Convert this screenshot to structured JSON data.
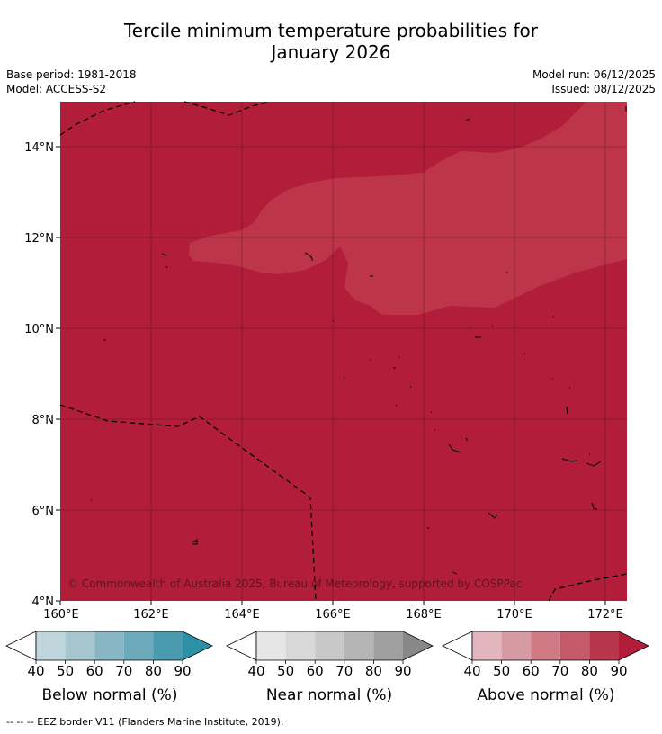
{
  "title": {
    "line1": "Tercile minimum temperature probabilities for",
    "line2": "January 2026"
  },
  "meta": {
    "base_period": "Base period: 1981-2018",
    "model": "Model: ACCESS-S2",
    "model_run": "Model run: 06/12/2025",
    "issued": "Issued: 08/12/2025"
  },
  "map": {
    "lon_labels": [
      "160°E",
      "162°E",
      "164°E",
      "166°E",
      "168°E",
      "170°E",
      "172°E"
    ],
    "lat_labels": [
      "14°N",
      "12°N",
      "10°N",
      "8°N",
      "6°N",
      "4°N"
    ],
    "copyright": "© Commonwealth of Australia 2025, Bureau of Meteorology, supported by COSPPac",
    "colors": {
      "above_80": "#b21e3a",
      "above_70": "#bd3549"
    }
  },
  "colorbars": [
    {
      "label": "Below normal (%)",
      "ticks": [
        "40",
        "50",
        "60",
        "70",
        "80",
        "90"
      ],
      "colors": [
        "#bfd5dc",
        "#a6c6ce",
        "#88b6c3",
        "#6caabb",
        "#4a9bb0",
        "#2e90a6"
      ]
    },
    {
      "label": "Near normal (%)",
      "ticks": [
        "40",
        "50",
        "60",
        "70",
        "80",
        "90"
      ],
      "colors": [
        "#e6e6e6",
        "#d8d8d8",
        "#c8c8c8",
        "#b5b5b5",
        "#a0a0a0",
        "#888888"
      ]
    },
    {
      "label": "Above normal (%)",
      "ticks": [
        "40",
        "50",
        "60",
        "70",
        "80",
        "90"
      ],
      "colors": [
        "#e3b6bd",
        "#d69aa3",
        "#cf7a85",
        "#c45a6b",
        "#b93549",
        "#b21e3a"
      ]
    }
  ],
  "footer": "--  --  -- EEZ border V11 (Flanders Marine Institute, 2019)."
}
